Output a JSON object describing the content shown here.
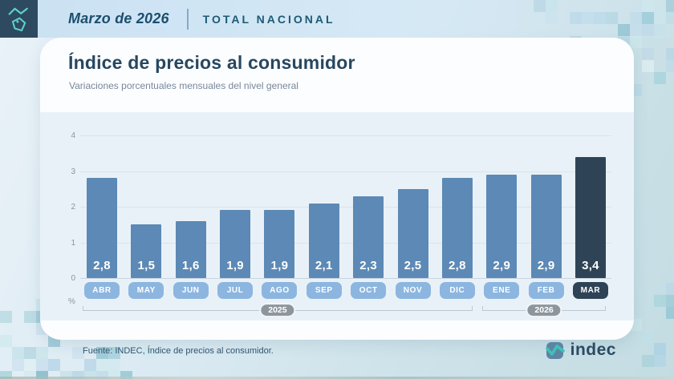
{
  "header": {
    "date_label": "Marzo de 2026",
    "scope_label": "TOTAL NACIONAL"
  },
  "card": {
    "title": "Índice de precios al consumidor",
    "subtitle": "Variaciones porcentuales mensuales del nivel general"
  },
  "chart_data": {
    "type": "bar",
    "title": "Índice de precios al consumidor",
    "subtitle": "Variaciones porcentuales mensuales del nivel general",
    "unit": "%",
    "categories": [
      "ABR",
      "MAY",
      "JUN",
      "JUL",
      "AGO",
      "SEP",
      "OCT",
      "NOV",
      "DIC",
      "ENE",
      "FEB",
      "MAR"
    ],
    "values": [
      2.8,
      1.5,
      1.6,
      1.9,
      1.9,
      2.1,
      2.3,
      2.5,
      2.8,
      2.9,
      2.9,
      3.4
    ],
    "value_labels": [
      "2,8",
      "1,5",
      "1,6",
      "1,9",
      "1,9",
      "2,1",
      "2,3",
      "2,5",
      "2,8",
      "2,9",
      "2,9",
      "3,4"
    ],
    "highlight_index": 11,
    "y_ticks": [
      0,
      1,
      2,
      3,
      4
    ],
    "ylim": [
      0,
      4
    ],
    "grid": true,
    "legend": null,
    "year_groups": [
      {
        "label": "2025",
        "start": 0,
        "end": 8
      },
      {
        "label": "2026",
        "start": 9,
        "end": 11
      }
    ],
    "colors": {
      "bar": "#5c89b5",
      "bar_highlight": "#2e4456",
      "month_pill": "#8cb6df",
      "month_pill_highlight": "#2e4456",
      "year_pill": "#8e969d",
      "panel_bg": "#e9f1f8"
    }
  },
  "footer": {
    "source": "Fuente: INDEC, Índice de precios al consumidor.",
    "logo_text": "indec"
  }
}
